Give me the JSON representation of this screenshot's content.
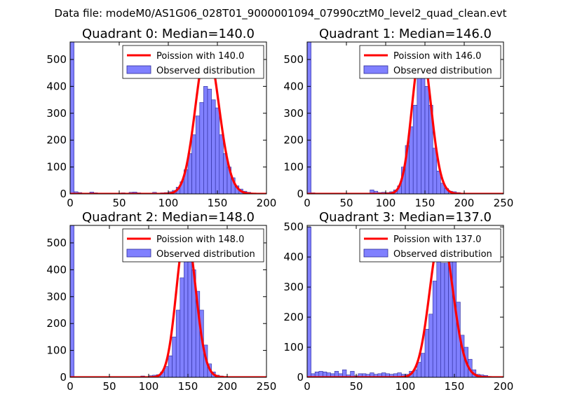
{
  "figure": {
    "suptitle": "Data file: modeM0/AS1G06_028T01_9000001094_07990cztM0_level2_quad_clean.evt",
    "colors": {
      "bar_fill": "#8080ff",
      "bar_edge": "#2a2a9a",
      "curve": "#ff0000"
    }
  },
  "chart_data": [
    {
      "type": "bar",
      "title": "Quadrant 0: Median=140.0",
      "xlim": [
        0,
        200
      ],
      "ylim": [
        0,
        565
      ],
      "xticks": [
        0,
        50,
        100,
        150,
        200
      ],
      "yticks": [
        0,
        100,
        200,
        300,
        400,
        500
      ],
      "bin_width": 4,
      "bins": [
        [
          0,
          565
        ],
        [
          4,
          8
        ],
        [
          8,
          5
        ],
        [
          12,
          3
        ],
        [
          20,
          7
        ],
        [
          24,
          4
        ],
        [
          28,
          3
        ],
        [
          36,
          2
        ],
        [
          44,
          3
        ],
        [
          52,
          4
        ],
        [
          60,
          6
        ],
        [
          64,
          7
        ],
        [
          68,
          4
        ],
        [
          76,
          3
        ],
        [
          84,
          6
        ],
        [
          88,
          3
        ],
        [
          92,
          4
        ],
        [
          96,
          5
        ],
        [
          100,
          8
        ],
        [
          104,
          13
        ],
        [
          108,
          25
        ],
        [
          112,
          45
        ],
        [
          116,
          90
        ],
        [
          120,
          150
        ],
        [
          124,
          220
        ],
        [
          128,
          290
        ],
        [
          132,
          340
        ],
        [
          136,
          400
        ],
        [
          140,
          390
        ],
        [
          144,
          350
        ],
        [
          148,
          320
        ],
        [
          152,
          220
        ],
        [
          156,
          150
        ],
        [
          160,
          100
        ],
        [
          164,
          60
        ],
        [
          168,
          30
        ],
        [
          172,
          18
        ],
        [
          176,
          10
        ],
        [
          180,
          6
        ],
        [
          184,
          3
        ],
        [
          188,
          2
        ]
      ],
      "poisson": {
        "label": "Poission with 140.0",
        "mean": 140.0,
        "peak": 545
      },
      "hist_label": "Observed distribution"
    },
    {
      "type": "bar",
      "title": "Quadrant 1: Median=146.0",
      "xlim": [
        0,
        250
      ],
      "ylim": [
        0,
        565
      ],
      "xticks": [
        0,
        50,
        100,
        150,
        200,
        250
      ],
      "yticks": [
        0,
        100,
        200,
        300,
        400,
        500
      ],
      "bin_width": 5,
      "bins": [
        [
          0,
          565
        ],
        [
          5,
          4
        ],
        [
          10,
          3
        ],
        [
          20,
          2
        ],
        [
          35,
          2
        ],
        [
          50,
          3
        ],
        [
          65,
          2
        ],
        [
          80,
          15
        ],
        [
          85,
          10
        ],
        [
          90,
          5
        ],
        [
          95,
          6
        ],
        [
          100,
          5
        ],
        [
          105,
          8
        ],
        [
          110,
          15
        ],
        [
          115,
          30
        ],
        [
          120,
          100
        ],
        [
          125,
          180
        ],
        [
          130,
          250
        ],
        [
          135,
          330
        ],
        [
          140,
          470
        ],
        [
          145,
          530
        ],
        [
          150,
          400
        ],
        [
          155,
          330
        ],
        [
          160,
          170
        ],
        [
          165,
          85
        ],
        [
          170,
          40
        ],
        [
          175,
          20
        ],
        [
          180,
          10
        ],
        [
          185,
          8
        ],
        [
          190,
          5
        ],
        [
          195,
          3
        ],
        [
          200,
          2
        ]
      ],
      "poisson": {
        "label": "Poission with 146.0",
        "mean": 146.0,
        "peak": 540
      },
      "hist_label": "Observed distribution"
    },
    {
      "type": "bar",
      "title": "Quadrant 2: Median=148.0",
      "xlim": [
        0,
        250
      ],
      "ylim": [
        0,
        565
      ],
      "xticks": [
        0,
        50,
        100,
        150,
        200,
        250
      ],
      "yticks": [
        0,
        100,
        200,
        300,
        400,
        500
      ],
      "bin_width": 5,
      "bins": [
        [
          0,
          565
        ],
        [
          5,
          3
        ],
        [
          10,
          2
        ],
        [
          20,
          2
        ],
        [
          40,
          2
        ],
        [
          60,
          2
        ],
        [
          80,
          2
        ],
        [
          90,
          5
        ],
        [
          100,
          6
        ],
        [
          105,
          8
        ],
        [
          110,
          10
        ],
        [
          115,
          20
        ],
        [
          120,
          40
        ],
        [
          125,
          80
        ],
        [
          130,
          150
        ],
        [
          135,
          250
        ],
        [
          140,
          370
        ],
        [
          145,
          470
        ],
        [
          150,
          450
        ],
        [
          155,
          400
        ],
        [
          160,
          320
        ],
        [
          165,
          250
        ],
        [
          170,
          120
        ],
        [
          175,
          50
        ],
        [
          180,
          20
        ],
        [
          185,
          8
        ],
        [
          190,
          5
        ],
        [
          195,
          3
        ],
        [
          200,
          2
        ]
      ],
      "poisson": {
        "label": "Poission with 148.0",
        "mean": 148.0,
        "peak": 545
      },
      "hist_label": "Observed distribution"
    },
    {
      "type": "bar",
      "title": "Quadrant 3: Median=137.0",
      "xlim": [
        0,
        200
      ],
      "ylim": [
        0,
        505
      ],
      "xticks": [
        0,
        50,
        100,
        150,
        200
      ],
      "yticks": [
        0,
        100,
        200,
        300,
        400,
        500
      ],
      "bin_width": 4,
      "bins": [
        [
          0,
          500
        ],
        [
          4,
          12
        ],
        [
          8,
          18
        ],
        [
          12,
          20
        ],
        [
          16,
          18
        ],
        [
          20,
          15
        ],
        [
          24,
          12
        ],
        [
          28,
          20
        ],
        [
          32,
          12
        ],
        [
          36,
          25
        ],
        [
          40,
          8
        ],
        [
          44,
          20
        ],
        [
          48,
          5
        ],
        [
          52,
          12
        ],
        [
          56,
          12
        ],
        [
          60,
          10
        ],
        [
          64,
          15
        ],
        [
          68,
          10
        ],
        [
          72,
          12
        ],
        [
          76,
          15
        ],
        [
          80,
          12
        ],
        [
          84,
          10
        ],
        [
          88,
          12
        ],
        [
          92,
          15
        ],
        [
          96,
          10
        ],
        [
          100,
          10
        ],
        [
          104,
          20
        ],
        [
          108,
          25
        ],
        [
          112,
          50
        ],
        [
          116,
          80
        ],
        [
          120,
          160
        ],
        [
          124,
          210
        ],
        [
          128,
          320
        ],
        [
          132,
          460
        ],
        [
          136,
          380
        ],
        [
          140,
          380
        ],
        [
          144,
          420
        ],
        [
          148,
          400
        ],
        [
          152,
          250
        ],
        [
          156,
          140
        ],
        [
          160,
          100
        ],
        [
          164,
          60
        ],
        [
          168,
          25
        ],
        [
          172,
          10
        ],
        [
          176,
          8
        ],
        [
          180,
          6
        ],
        [
          184,
          3
        ],
        [
          188,
          2
        ]
      ],
      "poisson": {
        "label": "Poission with 137.0",
        "mean": 137.0,
        "peak": 480
      },
      "hist_label": "Observed distribution"
    }
  ]
}
